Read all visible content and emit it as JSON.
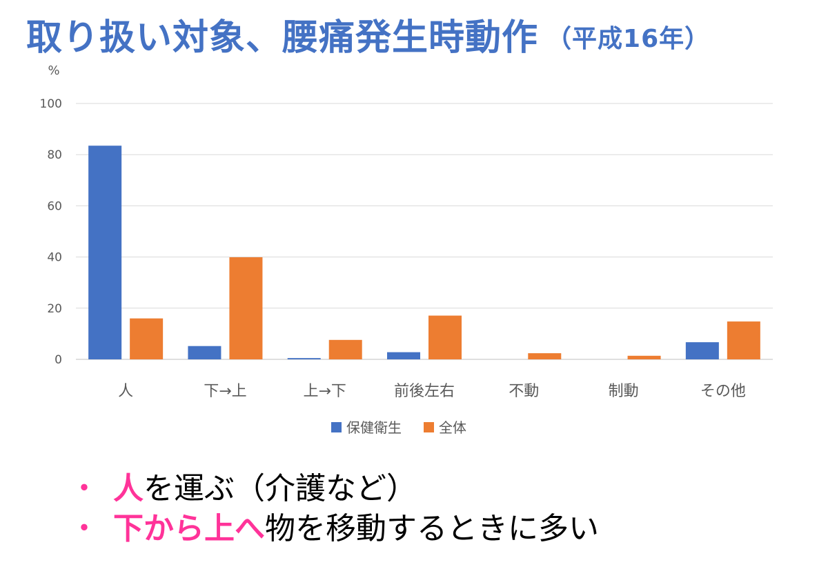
{
  "title": {
    "main": "取り扱い対象、腰痛発生時動作",
    "sub": "（平成16年）"
  },
  "chart_data": {
    "type": "bar",
    "ylabel": "%",
    "ylim": [
      0,
      100
    ],
    "yticks": [
      0,
      20,
      40,
      60,
      80,
      100
    ],
    "grid": true,
    "legend_position": "bottom",
    "categories": [
      "人",
      "下→上",
      "上→下",
      "前後左右",
      "不動",
      "制動",
      "その他"
    ],
    "series": [
      {
        "name": "保健衛生",
        "color": "#4472c4",
        "values": [
          83.5,
          5.2,
          0.5,
          2.8,
          0,
          0,
          6.7
        ]
      },
      {
        "name": "全体",
        "color": "#ed7d31",
        "values": [
          16.0,
          39.9,
          7.6,
          17.1,
          2.4,
          1.4,
          14.8
        ]
      }
    ]
  },
  "bullets": [
    {
      "marker": "・",
      "highlight": "人",
      "rest": "を運ぶ（介護など）"
    },
    {
      "marker": "・",
      "highlight": "下から上へ",
      "rest": "物を移動するときに多い"
    }
  ],
  "colors": {
    "title": "#4472c4",
    "highlight": "#ff3399",
    "grid": "#d9d9d9",
    "axis_text": "#595959"
  }
}
